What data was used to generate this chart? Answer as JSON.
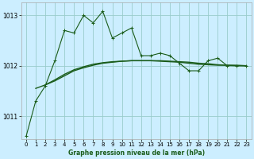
{
  "bg_color": "#cceeff",
  "grid_color": "#99cccc",
  "line_color": "#1a5c1a",
  "xlabel": "Graphe pression niveau de la mer (hPa)",
  "xlim": [
    -0.5,
    23.5
  ],
  "ylim": [
    1010.55,
    1013.25
  ],
  "yticks": [
    1011,
    1012,
    1013
  ],
  "xticks": [
    0,
    1,
    2,
    3,
    4,
    5,
    6,
    7,
    8,
    9,
    10,
    11,
    12,
    13,
    14,
    15,
    16,
    17,
    18,
    19,
    20,
    21,
    22,
    23
  ],
  "series_spiky": [
    1010.6,
    1011.3,
    1011.6,
    1012.1,
    1012.7,
    1012.65,
    1013.0,
    1012.85,
    1013.08,
    1012.55,
    1012.65,
    1012.75,
    1012.2,
    1012.2,
    1012.25,
    1012.2,
    1012.05,
    1011.9,
    1011.9,
    1012.1,
    1012.15,
    1012.0,
    1012.0,
    1012.0
  ],
  "smooth1": [
    1011.55,
    1011.62,
    1011.72,
    1011.83,
    1011.92,
    1011.98,
    1012.03,
    1012.06,
    1012.08,
    1012.09,
    1012.1,
    1012.1,
    1012.1,
    1012.09,
    1012.08,
    1012.07,
    1012.05,
    1012.03,
    1012.02,
    1012.01,
    1012.01,
    1012.0,
    1012.0,
    1012.0
  ],
  "smooth2": [
    1011.62,
    1011.7,
    1011.8,
    1011.9,
    1011.96,
    1012.01,
    1012.05,
    1012.07,
    1012.09,
    1012.1,
    1012.1,
    1012.1,
    1012.1,
    1012.09,
    1012.08,
    1012.07,
    1012.05,
    1012.04,
    1012.02,
    1012.01,
    1012.01,
    1012.0,
    1012.0,
    1012.0
  ]
}
